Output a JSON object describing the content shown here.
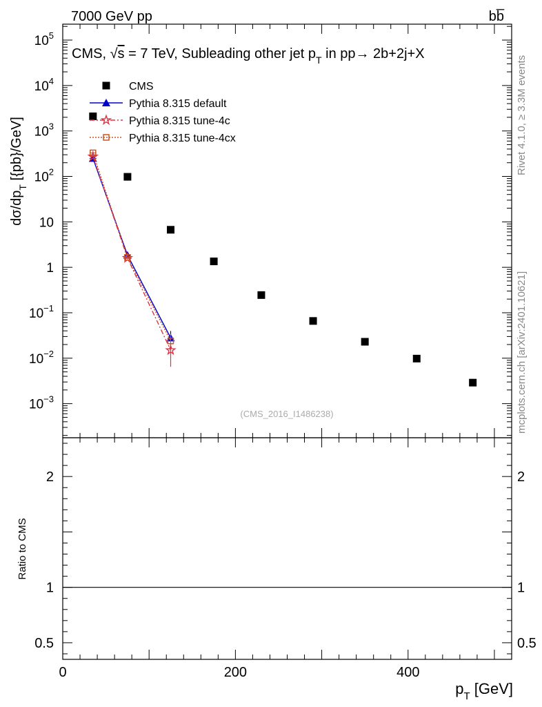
{
  "header": {
    "left_label": "7000 GeV pp",
    "right_label": "bb̅"
  },
  "side_labels": {
    "rivet": "Rivet 4.1.0, ≥ 3.3M events",
    "mcplots": "mcplots.cern.ch [arXiv:2401.10621]"
  },
  "chart_data": {
    "type": "scatter",
    "title": "CMS, √s = 7 TeV, Subleading other jet p_T in pp→ 2b+2j+X",
    "title_parts": {
      "prefix": "CMS, ",
      "sqrt": "√",
      "s": "s",
      "mid": " = 7 TeV, Subleading other jet p",
      "sub": "T",
      "suffix": " in pp→  2b+2j+X"
    },
    "watermark": "(CMS_2016_I1486238)",
    "xlabel": {
      "main": "p",
      "sub": "T",
      "unit": " [GeV]"
    },
    "ylabel": {
      "main": "dσ/dp",
      "sub": "T",
      "unit": " [{pb}/GeV]"
    },
    "ratio_ylabel": "Ratio to CMS",
    "xlim": [
      0,
      520
    ],
    "ylim_log10": [
      -3.75,
      5.35
    ],
    "ratio_ylim": [
      0.35,
      2.35
    ],
    "xticks": [
      0,
      200,
      400
    ],
    "xtick_labels": [
      "0",
      "200",
      "400"
    ],
    "yticks": [
      {
        "exp": 5,
        "label": "10",
        "sup": "5"
      },
      {
        "exp": 4,
        "label": "10",
        "sup": "4"
      },
      {
        "exp": 3,
        "label": "10",
        "sup": "3"
      },
      {
        "exp": 2,
        "label": "10",
        "sup": "2"
      },
      {
        "exp": 1,
        "label": "10",
        "sup": ""
      },
      {
        "exp": 0,
        "label": "1",
        "sup": ""
      },
      {
        "exp": -1,
        "label": "10",
        "sup": "−1"
      },
      {
        "exp": -2,
        "label": "10",
        "sup": "−2"
      },
      {
        "exp": -3,
        "label": "10",
        "sup": "−3"
      }
    ],
    "ratio_ticks": [
      {
        "value": 2,
        "label": "2"
      },
      {
        "value": 1,
        "label": "1"
      },
      {
        "value": 0.5,
        "label": "0.5"
      }
    ],
    "series": [
      {
        "name": "CMS",
        "marker": "square",
        "color": "#000000",
        "x": [
          35,
          75,
          125,
          175,
          230,
          290,
          350,
          410,
          475
        ],
        "y": [
          2100,
          98,
          6.7,
          1.35,
          0.245,
          0.066,
          0.023,
          0.0098,
          0.0029
        ]
      },
      {
        "name": "Pythia 8.315 default",
        "marker": "triangle",
        "color": "#0000cc",
        "dash": "",
        "x": [
          35,
          75,
          125
        ],
        "y": [
          250,
          1.85,
          0.028
        ]
      },
      {
        "name": "Pythia 8.315 tune-4c",
        "marker": "star",
        "color": "#dd3344",
        "dash": "7,3,2,3",
        "x": [
          35,
          75,
          125
        ],
        "y": [
          275,
          1.6,
          0.015
        ]
      },
      {
        "name": "Pythia 8.315 tune-4cx",
        "marker": "opensquare",
        "color": "#cc5522",
        "dash": "2,2",
        "x": [
          35,
          75,
          125
        ],
        "y": [
          330,
          1.65,
          0.024
        ]
      }
    ]
  }
}
